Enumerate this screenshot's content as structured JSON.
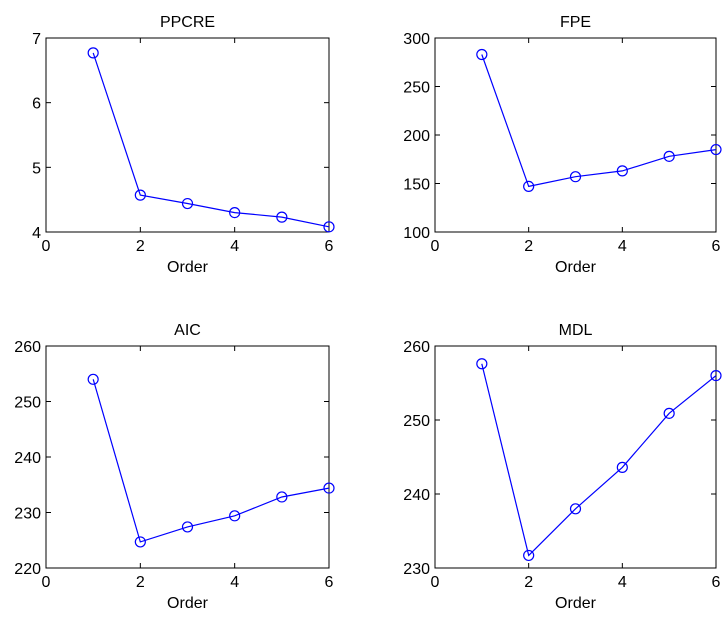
{
  "chart_data": [
    {
      "type": "line",
      "title": "PPCRE",
      "xlabel": "Order",
      "ylabel": "",
      "xlim": [
        0,
        6
      ],
      "ylim": [
        4,
        7
      ],
      "xticks": [
        "0",
        "2",
        "4",
        "6"
      ],
      "yticks": [
        "4",
        "5",
        "6",
        "7"
      ],
      "grid": false,
      "color": "#0000ff",
      "marker": "circle",
      "series": [
        {
          "x": [
            1,
            2,
            3,
            4,
            5,
            6
          ],
          "values": [
            6.77,
            4.57,
            4.44,
            4.3,
            4.23,
            4.08
          ]
        }
      ]
    },
    {
      "type": "line",
      "title": "FPE",
      "xlabel": "Order",
      "ylabel": "",
      "xlim": [
        0,
        6
      ],
      "ylim": [
        100,
        300
      ],
      "xticks": [
        "0",
        "2",
        "4",
        "6"
      ],
      "yticks": [
        "100",
        "150",
        "200",
        "250",
        "300"
      ],
      "grid": false,
      "color": "#0000ff",
      "marker": "circle",
      "series": [
        {
          "x": [
            1,
            2,
            3,
            4,
            5,
            6
          ],
          "values": [
            283,
            147,
            157,
            163,
            178,
            185
          ]
        }
      ]
    },
    {
      "type": "line",
      "title": "AIC",
      "xlabel": "Order",
      "ylabel": "",
      "xlim": [
        0,
        6
      ],
      "ylim": [
        220,
        260
      ],
      "xticks": [
        "0",
        "2",
        "4",
        "6"
      ],
      "yticks": [
        "220",
        "230",
        "240",
        "250",
        "260"
      ],
      "grid": false,
      "color": "#0000ff",
      "marker": "circle",
      "series": [
        {
          "x": [
            1,
            2,
            3,
            4,
            5,
            6
          ],
          "values": [
            254,
            224.7,
            227.4,
            229.4,
            232.8,
            234.4
          ]
        }
      ]
    },
    {
      "type": "line",
      "title": "MDL",
      "xlabel": "Order",
      "ylabel": "",
      "xlim": [
        0,
        6
      ],
      "ylim": [
        230,
        260
      ],
      "xticks": [
        "0",
        "2",
        "4",
        "6"
      ],
      "yticks": [
        "230",
        "240",
        "250",
        "260"
      ],
      "grid": false,
      "color": "#0000ff",
      "marker": "circle",
      "series": [
        {
          "x": [
            1,
            2,
            3,
            4,
            5,
            6
          ],
          "values": [
            257.6,
            231.7,
            238.0,
            243.6,
            250.9,
            256.0
          ]
        }
      ]
    }
  ]
}
